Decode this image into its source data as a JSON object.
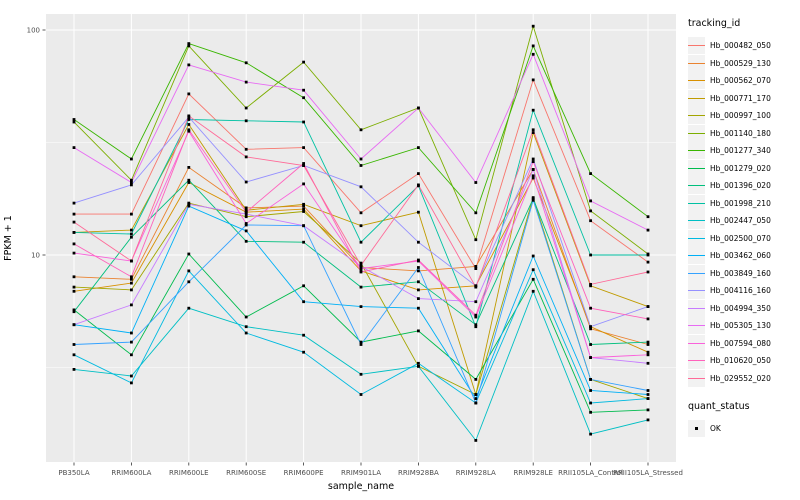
{
  "panel": {
    "bg_color": "#EBEBEB",
    "grid_color": "#FFFFFF",
    "point_color": "#000000",
    "axis_text_color": "#4D4D4D",
    "tick_color": "#333333",
    "legend_key_bg": "#F2F2F2"
  },
  "chart_data": {
    "type": "line",
    "title": "",
    "xlabel": "sample_name",
    "ylabel": "FPKM + 1",
    "y_scale": "log10",
    "y_ticks": [
      10,
      100
    ],
    "y_tick_labels": [
      "10",
      "100"
    ],
    "y_minor_ticks": [
      3.1623,
      31.623
    ],
    "ylim": [
      1.3,
      120
    ],
    "grid": "white major+minor on gray panel",
    "legend_position": "right",
    "legend_title": "tracking_id",
    "marker": "black-square",
    "categories": [
      "PB350LA",
      "RRIM600LA",
      "RRIM600LE",
      "RRIM600SE",
      "RRIM600PE",
      "RRIM901LA",
      "RRIM928BA",
      "RRIM928LA",
      "RRIM928LE",
      "RRII105LA_Control",
      "RRII105LA_Stressed"
    ],
    "series": [
      {
        "name": "Hb_000482_050",
        "color": "#F8766D",
        "values": [
          15.2,
          15.2,
          52,
          29.5,
          30,
          15.4,
          23,
          8.7,
          60,
          14.2,
          9.3
        ]
      },
      {
        "name": "Hb_000529_130",
        "color": "#EA8331",
        "values": [
          8.0,
          7.8,
          24.5,
          16.2,
          16.5,
          8.8,
          8.5,
          8.9,
          24,
          4.7,
          4.0
        ]
      },
      {
        "name": "Hb_000562_070",
        "color": "#D89000",
        "values": [
          6.9,
          7.5,
          21,
          15.5,
          16,
          8.5,
          7.0,
          7.3,
          22,
          4.8,
          3.7
        ]
      },
      {
        "name": "Hb_000771_170",
        "color": "#C09B00",
        "values": [
          12.6,
          12.9,
          38,
          15.8,
          16.8,
          13.5,
          15.5,
          2.4,
          35,
          7.3,
          5.9
        ]
      },
      {
        "name": "Hb_000997_100",
        "color": "#A3A500",
        "values": [
          7.2,
          7.0,
          17,
          14.8,
          15.6,
          9.2,
          3.2,
          2.4,
          18,
          2.8,
          2.3
        ]
      },
      {
        "name": "Hb_001140_180",
        "color": "#7CAE00",
        "values": [
          39,
          21.5,
          85,
          45,
          72,
          36,
          45,
          11.7,
          104,
          15.7,
          10.1
        ]
      },
      {
        "name": "Hb_001277_340",
        "color": "#39B600",
        "values": [
          40,
          26.7,
          87,
          71.5,
          50,
          25,
          30,
          15.4,
          85,
          23,
          14.8
        ]
      },
      {
        "name": "Hb_001279_020",
        "color": "#00BB4E",
        "values": [
          5.7,
          3.6,
          10.1,
          5.3,
          7.3,
          4.1,
          4.6,
          2.8,
          7.8,
          2.0,
          2.05
        ]
      },
      {
        "name": "Hb_001396_020",
        "color": "#00BF7D",
        "values": [
          5.6,
          12.0,
          21.5,
          11.5,
          11.4,
          7.2,
          7.6,
          4.9,
          17.8,
          4.0,
          4.1
        ]
      },
      {
        "name": "Hb_001998_210",
        "color": "#00C1A3",
        "values": [
          12.6,
          12.4,
          40,
          39.5,
          39,
          11.4,
          20.3,
          4.8,
          44,
          10.0,
          10.0
        ]
      },
      {
        "name": "Hb_002447_050",
        "color": "#00BFC4",
        "values": [
          3.1,
          2.9,
          5.8,
          4.8,
          4.4,
          2.95,
          3.2,
          1.5,
          6.9,
          1.6,
          1.85
        ]
      },
      {
        "name": "Hb_002500_070",
        "color": "#00BAE0",
        "values": [
          3.6,
          2.7,
          8.5,
          4.5,
          3.7,
          2.4,
          3.3,
          2.2,
          8.6,
          2.2,
          2.3
        ]
      },
      {
        "name": "Hb_003462_060",
        "color": "#00B0F6",
        "values": [
          4.9,
          4.5,
          16.5,
          12.8,
          6.2,
          5.9,
          5.8,
          2.3,
          9.9,
          2.5,
          2.4
        ]
      },
      {
        "name": "Hb_003849_160",
        "color": "#35A2FF",
        "values": [
          4.0,
          4.1,
          7.6,
          13.6,
          13.5,
          4.0,
          8.8,
          2.2,
          17.5,
          2.8,
          2.5
        ]
      },
      {
        "name": "Hb_004116_160",
        "color": "#9590FF",
        "values": [
          17,
          20.5,
          41,
          21.1,
          25,
          20.1,
          11.4,
          7.3,
          26.7,
          4.8,
          5.9
        ]
      },
      {
        "name": "Hb_004994_350",
        "color": "#C77CFF",
        "values": [
          4.9,
          6.0,
          16.8,
          15.2,
          13.5,
          8.9,
          6.4,
          6.2,
          24,
          3.5,
          3.3
        ]
      },
      {
        "name": "Hb_005305_130",
        "color": "#E76BF3",
        "values": [
          30,
          21,
          70,
          58.7,
          54,
          26.7,
          45,
          21,
          78,
          17.4,
          12.9
        ]
      },
      {
        "name": "Hb_007594_080",
        "color": "#FA62DB",
        "values": [
          10.2,
          9.4,
          35.5,
          13.8,
          20.7,
          8.7,
          9.4,
          5.3,
          22.5,
          3.5,
          3.6
        ]
      },
      {
        "name": "Hb_010620_050",
        "color": "#FF62BC",
        "values": [
          11.2,
          8.0,
          36,
          15.5,
          25.5,
          8.4,
          9.5,
          5.4,
          26,
          5.8,
          5.2
        ]
      },
      {
        "name": "Hb_029552_020",
        "color": "#FF6A98",
        "values": [
          14,
          9.4,
          41.5,
          27.3,
          25,
          9.0,
          20.5,
          7.2,
          36,
          7.4,
          8.4
        ]
      }
    ],
    "legend2_title": "quant_status",
    "legend2_items": [
      {
        "label": "OK",
        "marker": "black-square"
      }
    ]
  }
}
